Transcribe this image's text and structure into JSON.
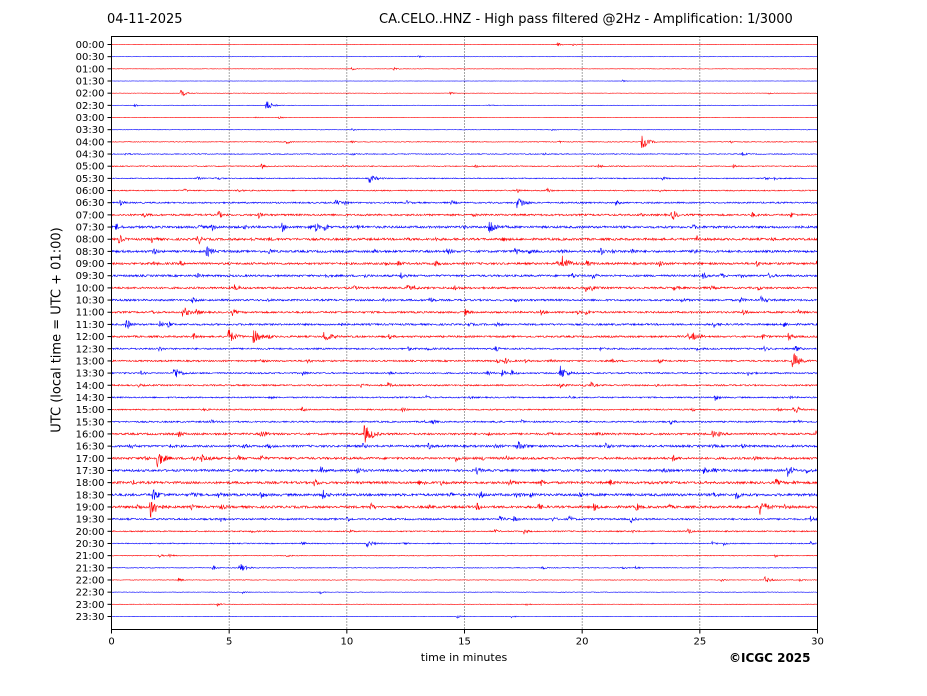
{
  "header": {
    "date": "04-11-2025",
    "title": "CA.CELO..HNZ - High pass filtered @2Hz - Amplification: 1/3000"
  },
  "footer": {
    "copyright": "©ICGC 2025"
  },
  "chart_data": {
    "type": "line",
    "title": "CA.CELO..HNZ - High pass filtered @2Hz - Amplification: 1/3000",
    "xlabel": "time in minutes",
    "ylabel": "UTC (local time = UTC + 01:00)",
    "xlim": [
      0,
      30
    ],
    "x_ticks": [
      0,
      5,
      10,
      15,
      20,
      25,
      30
    ],
    "x_tick_labels": [
      "0",
      "5",
      "10",
      "15",
      "20",
      "25",
      "30"
    ],
    "grid": "vertical dotted lines at 5-minute ticks",
    "colors": {
      "odd_hour_traces": "#ff0000",
      "half_hour_traces": "#0000ff"
    },
    "trace_labels": [
      "00:00",
      "00:30",
      "01:00",
      "01:30",
      "02:00",
      "02:30",
      "03:00",
      "03:30",
      "04:00",
      "04:30",
      "05:00",
      "05:30",
      "06:00",
      "06:30",
      "07:00",
      "07:30",
      "08:00",
      "08:30",
      "09:00",
      "09:30",
      "10:00",
      "10:30",
      "11:00",
      "11:30",
      "12:00",
      "12:30",
      "13:00",
      "13:30",
      "14:00",
      "14:30",
      "15:00",
      "15:30",
      "16:00",
      "16:30",
      "17:00",
      "17:30",
      "18:00",
      "18:30",
      "19:00",
      "19:30",
      "20:00",
      "20:30",
      "21:00",
      "21:30",
      "22:00",
      "22:30",
      "23:00",
      "23:30"
    ],
    "trace_colors": [
      "red",
      "blue",
      "red",
      "blue",
      "red",
      "blue",
      "red",
      "blue",
      "red",
      "blue",
      "red",
      "blue",
      "red",
      "blue",
      "red",
      "blue",
      "red",
      "blue",
      "red",
      "blue",
      "red",
      "blue",
      "red",
      "blue",
      "red",
      "blue",
      "red",
      "blue",
      "red",
      "blue",
      "red",
      "blue",
      "red",
      "blue",
      "red",
      "blue",
      "red",
      "blue",
      "red",
      "blue",
      "red",
      "blue",
      "red",
      "blue",
      "red",
      "blue",
      "red",
      "blue"
    ],
    "noise_level": [
      0.3,
      0.2,
      0.3,
      0.2,
      0.3,
      0.3,
      0.3,
      0.4,
      0.6,
      0.7,
      0.8,
      0.8,
      0.9,
      1.2,
      1.5,
      1.8,
      1.8,
      1.8,
      1.7,
      1.6,
      1.6,
      1.5,
      1.5,
      1.5,
      1.5,
      1.3,
      1.3,
      1.2,
      1.2,
      1.1,
      1.1,
      1.2,
      1.6,
      1.7,
      1.8,
      1.8,
      1.9,
      2.0,
      1.9,
      1.4,
      1.0,
      0.8,
      0.6,
      0.6,
      0.5,
      0.4,
      0.4,
      0.3
    ],
    "events": [
      {
        "trace": "02:00",
        "minute": 3.0,
        "amplitude": 3
      },
      {
        "trace": "02:30",
        "minute": 6.6,
        "amplitude": 5
      },
      {
        "trace": "04:00",
        "minute": 22.6,
        "amplitude": 6
      },
      {
        "trace": "05:30",
        "minute": 11.0,
        "amplitude": 4
      },
      {
        "trace": "06:30",
        "minute": 17.3,
        "amplitude": 5
      },
      {
        "trace": "07:30",
        "minute": 16.1,
        "amplitude": 7
      },
      {
        "trace": "08:30",
        "minute": 4.1,
        "amplitude": 4
      },
      {
        "trace": "09:00",
        "minute": 19.2,
        "amplitude": 8
      },
      {
        "trace": "11:00",
        "minute": 3.1,
        "amplitude": 4
      },
      {
        "trace": "12:00",
        "minute": 5.0,
        "amplitude": 7
      },
      {
        "trace": "12:00",
        "minute": 6.1,
        "amplitude": 6
      },
      {
        "trace": "12:00",
        "minute": 9.1,
        "amplitude": 5
      },
      {
        "trace": "13:00",
        "minute": 29.0,
        "amplitude": 8
      },
      {
        "trace": "13:30",
        "minute": 2.7,
        "amplitude": 6
      },
      {
        "trace": "13:30",
        "minute": 19.1,
        "amplitude": 7
      },
      {
        "trace": "16:00",
        "minute": 10.8,
        "amplitude": 8
      },
      {
        "trace": "16:30",
        "minute": 17.3,
        "amplitude": 4
      },
      {
        "trace": "17:00",
        "minute": 2.0,
        "amplitude": 8
      },
      {
        "trace": "18:30",
        "minute": 1.8,
        "amplitude": 5
      },
      {
        "trace": "19:00",
        "minute": 1.7,
        "amplitude": 11
      },
      {
        "trace": "19:00",
        "minute": 27.6,
        "amplitude": 7
      },
      {
        "trace": "20:30",
        "minute": 10.9,
        "amplitude": 3
      },
      {
        "trace": "21:30",
        "minute": 5.5,
        "amplitude": 4
      },
      {
        "trace": "22:00",
        "minute": 27.8,
        "amplitude": 3
      }
    ]
  }
}
